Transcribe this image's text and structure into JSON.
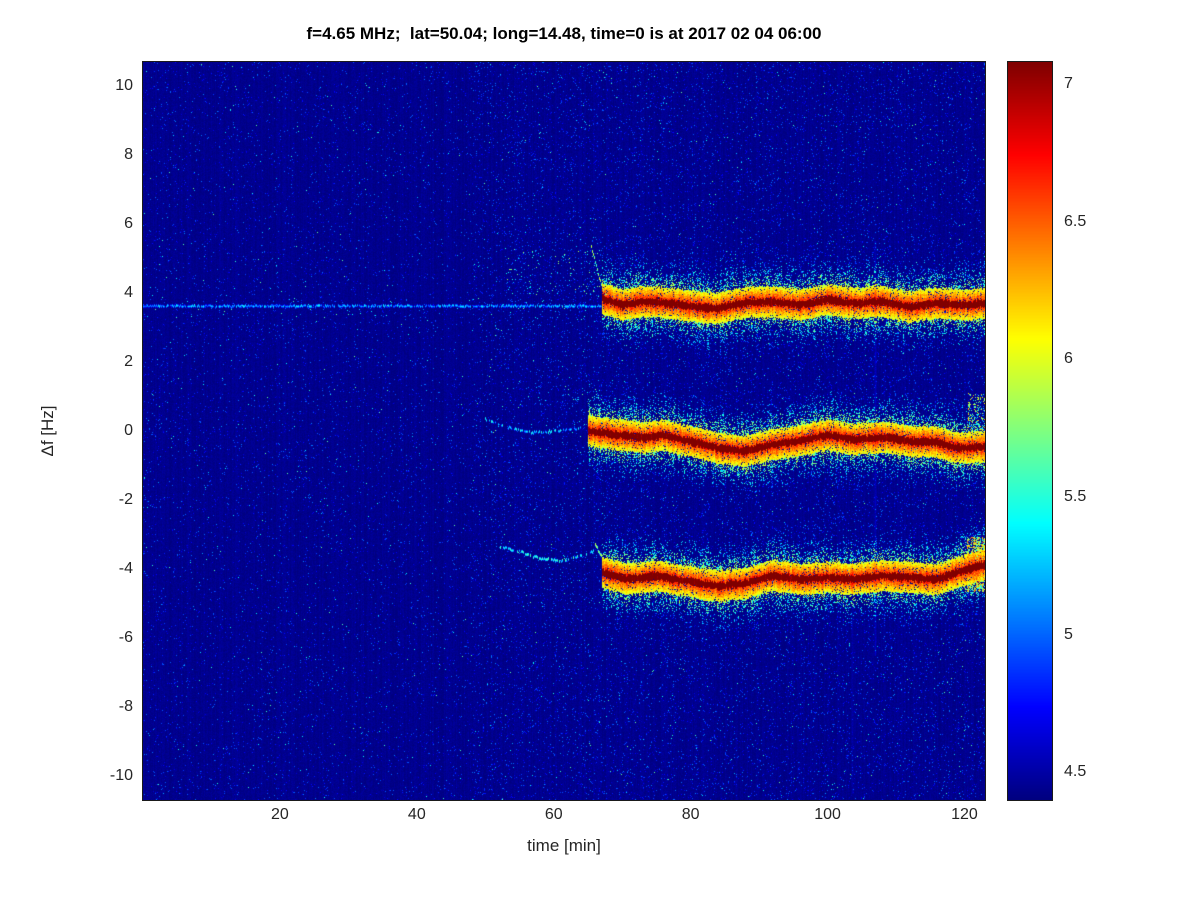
{
  "chart_data": {
    "type": "heatmap",
    "title": "f=4.65 MHz;  lat=50.04; long=14.48, time=0 is at 2017 02 04 06:00",
    "xlabel": "time [min]",
    "ylabel": "Δf [Hz]",
    "parameters": {
      "f_MHz": 4.65,
      "lat": 50.04,
      "long": 14.48,
      "time_zero": "2017 02 04 06:00"
    },
    "xlim": [
      0,
      123
    ],
    "ylim": [
      -10.7,
      10.7
    ],
    "x_ticks": [
      20,
      40,
      60,
      80,
      100,
      120
    ],
    "y_ticks": [
      10,
      8,
      6,
      4,
      2,
      0,
      -2,
      -4,
      -6,
      -8,
      -10
    ],
    "colormap": "jet",
    "clim": [
      4.4,
      7.08
    ],
    "colorbar_ticks": [
      "7",
      "6.5",
      "6",
      "5.5",
      "5",
      "4.5"
    ],
    "grid": false,
    "legend": "none",
    "noise": {
      "base": 4.4,
      "speckle_prob": 0.032,
      "bright_prob": 0.0018,
      "right_half_boost": 1.7,
      "boost_after_min": 48
    },
    "band_style": {
      "core_value": 7.05,
      "halo_halfwidth": 0.45,
      "speckle_sigma": 0.5
    },
    "traces": [
      {
        "name": "carrier-line",
        "kind": "thin",
        "value": 5.15,
        "gap": 0.1,
        "points": [
          [
            0,
            3.62
          ],
          [
            67,
            3.62
          ]
        ]
      },
      {
        "name": "upper-precloud",
        "kind": "cloud",
        "t_range": [
          53,
          67
        ],
        "f_range": [
          3.95,
          5.25
        ],
        "density": 0.035,
        "value": [
          4.9,
          5.9
        ]
      },
      {
        "name": "upper-lead-hook",
        "kind": "thin",
        "value": 5.9,
        "gap": 0.05,
        "points": [
          [
            65.5,
            5.35
          ],
          [
            66.3,
            4.75
          ],
          [
            67.1,
            4.15
          ],
          [
            68,
            3.85
          ]
        ]
      },
      {
        "name": "upper-band",
        "kind": "band",
        "points": [
          [
            67,
            3.85
          ],
          [
            70,
            3.65
          ],
          [
            73,
            3.75
          ],
          [
            76,
            3.72
          ],
          [
            80,
            3.62
          ],
          [
            84,
            3.55
          ],
          [
            88,
            3.72
          ],
          [
            92,
            3.75
          ],
          [
            96,
            3.65
          ],
          [
            100,
            3.8
          ],
          [
            104,
            3.7
          ],
          [
            108,
            3.75
          ],
          [
            112,
            3.6
          ],
          [
            116,
            3.7
          ],
          [
            120,
            3.65
          ],
          [
            123,
            3.7
          ]
        ]
      },
      {
        "name": "middle-lead",
        "kind": "thin",
        "value": 5.3,
        "gap": 0.42,
        "points": [
          [
            50,
            0.35
          ],
          [
            53,
            0.12
          ],
          [
            57,
            -0.05
          ],
          [
            61,
            0.0
          ],
          [
            64,
            0.08
          ]
        ]
      },
      {
        "name": "middle-precloud",
        "kind": "cloud",
        "t_range": [
          62,
          67
        ],
        "f_range": [
          0.2,
          1.6
        ],
        "density": 0.02,
        "value": [
          4.9,
          5.7
        ]
      },
      {
        "name": "middle-band",
        "kind": "band",
        "points": [
          [
            65,
            0.0
          ],
          [
            69,
            -0.1
          ],
          [
            73,
            -0.2
          ],
          [
            76,
            -0.12
          ],
          [
            80,
            -0.3
          ],
          [
            84,
            -0.5
          ],
          [
            88,
            -0.58
          ],
          [
            92,
            -0.4
          ],
          [
            96,
            -0.28
          ],
          [
            100,
            -0.12
          ],
          [
            104,
            -0.25
          ],
          [
            108,
            -0.18
          ],
          [
            112,
            -0.3
          ],
          [
            116,
            -0.32
          ],
          [
            119,
            -0.5
          ],
          [
            123,
            -0.45
          ]
        ]
      },
      {
        "name": "middle-end-plume",
        "kind": "cloud",
        "t_range": [
          120.5,
          123
        ],
        "f_range": [
          -1.0,
          1.1
        ],
        "density": 0.28,
        "value": [
          5.2,
          6.4
        ]
      },
      {
        "name": "lower-lead",
        "kind": "thin",
        "value": 5.45,
        "gap": 0.35,
        "points": [
          [
            52,
            -3.35
          ],
          [
            55,
            -3.5
          ],
          [
            58,
            -3.7
          ],
          [
            61,
            -3.78
          ],
          [
            64,
            -3.62
          ],
          [
            66,
            -3.48
          ]
        ]
      },
      {
        "name": "lower-lead-hook",
        "kind": "thin",
        "value": 5.9,
        "gap": 0.05,
        "points": [
          [
            66,
            -3.25
          ],
          [
            67,
            -3.65
          ],
          [
            68,
            -4.05
          ]
        ]
      },
      {
        "name": "lower-band",
        "kind": "band",
        "points": [
          [
            67,
            -4.1
          ],
          [
            71,
            -4.3
          ],
          [
            75,
            -4.2
          ],
          [
            79,
            -4.35
          ],
          [
            84,
            -4.5
          ],
          [
            88,
            -4.42
          ],
          [
            92,
            -4.2
          ],
          [
            96,
            -4.3
          ],
          [
            100,
            -4.25
          ],
          [
            104,
            -4.3
          ],
          [
            108,
            -4.2
          ],
          [
            112,
            -4.25
          ],
          [
            116,
            -4.3
          ],
          [
            119,
            -4.1
          ],
          [
            122,
            -3.92
          ],
          [
            123,
            -3.88
          ]
        ]
      },
      {
        "name": "lower-end-plume",
        "kind": "cloud",
        "t_range": [
          120.3,
          123
        ],
        "f_range": [
          -4.65,
          -3.1
        ],
        "density": 0.45,
        "value": [
          5.5,
          6.6
        ]
      },
      {
        "name": "faint-streak-1",
        "kind": "vstreak",
        "t": 107,
        "f_range": [
          -6.5,
          5.5
        ],
        "boost": 0.17
      },
      {
        "name": "faint-streak-2",
        "kind": "vstreak",
        "t": 103.5,
        "f_range": [
          -10.5,
          -3.5
        ],
        "boost": 0.13
      }
    ]
  }
}
